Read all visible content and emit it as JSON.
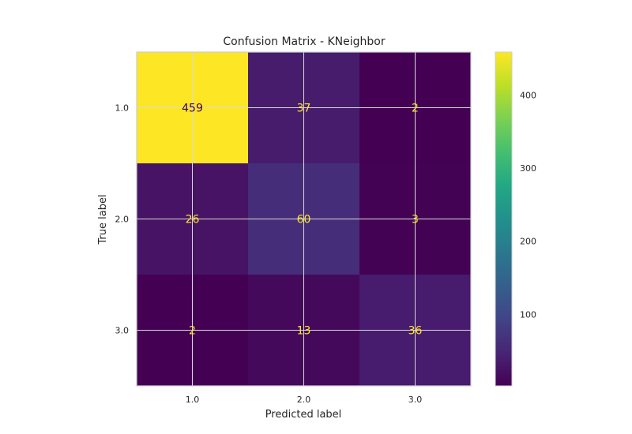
{
  "chart_data": {
    "type": "heatmap",
    "title": "Confusion Matrix - KNeighbor",
    "xlabel": "Predicted label",
    "ylabel": "True label",
    "x_categories": [
      "1.0",
      "2.0",
      "3.0"
    ],
    "y_categories": [
      "1.0",
      "2.0",
      "3.0"
    ],
    "values": [
      [
        459,
        37,
        2
      ],
      [
        26,
        60,
        3
      ],
      [
        2,
        13,
        36
      ]
    ],
    "colormap": "viridis",
    "color_range": [
      2,
      459
    ],
    "colorbar_ticks": [
      100,
      200,
      300,
      400
    ],
    "grid": true
  }
}
